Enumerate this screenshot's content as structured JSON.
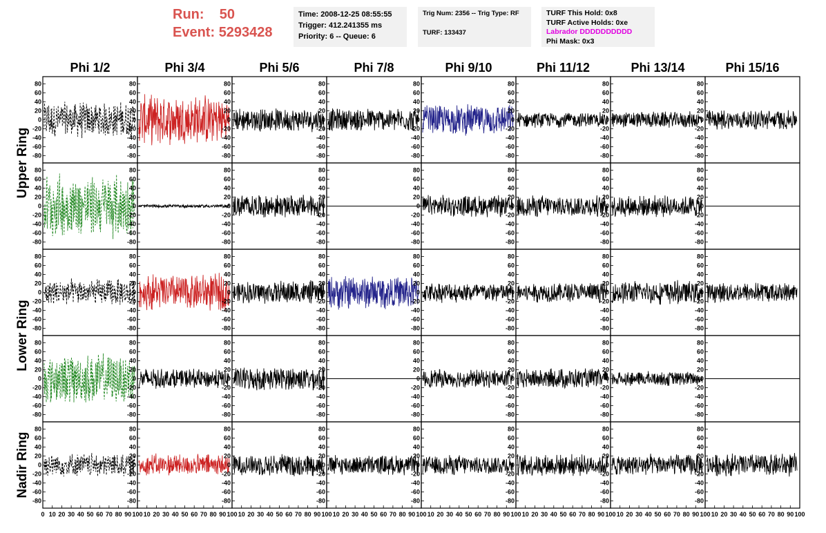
{
  "header": {
    "run_label": "Run:",
    "run_value": "50",
    "event_label": "Event:",
    "event_value": "5293428",
    "time": "Time: 2008-12-25 08:55:55",
    "trigger": "Trigger: 412.241355 ms",
    "priority": "Priority: 6 -- Queue: 6",
    "trig_num": "Trig Num: 2356 -- Trig Type: RF",
    "turf": "TURF: 133437",
    "turf_hold": "TURF This Hold: 0x8",
    "turf_active": "TURF Active Holds: 0xe",
    "labrador": "Labrador DDDDDDDDDD",
    "phi_mask": "Phi Mask: 0x3"
  },
  "colors": {
    "run_text": "#d9534f",
    "labrador": "#e000e0",
    "trace_black": "#000000",
    "trace_red": "#cc2222",
    "trace_green": "#228822",
    "trace_blue": "#22228a"
  },
  "columns": [
    "Phi 1/2",
    "Phi 3/4",
    "Phi 5/6",
    "Phi 7/8",
    "Phi 9/10",
    "Phi 11/12",
    "Phi 13/14",
    "Phi 15/16"
  ],
  "rows": [
    {
      "label": "Upper Ring",
      "panel_rows": 2
    },
    {
      "label": "Lower Ring",
      "panel_rows": 2
    },
    {
      "label": "Nadir Ring",
      "panel_rows": 1
    }
  ],
  "chart_data": {
    "type": "line",
    "grid": false,
    "ylim": [
      -90,
      90
    ],
    "yticks": [
      -80,
      -60,
      -40,
      -20,
      0,
      20,
      40,
      60,
      80
    ],
    "xlim": [
      0,
      100
    ],
    "xticks": [
      0,
      10,
      20,
      30,
      40,
      50,
      60,
      70,
      80,
      90,
      100
    ],
    "xtick_labels_per_panel": [
      "0",
      "10",
      "20",
      "30",
      "40",
      "50",
      "60",
      "70",
      "80",
      "90",
      "100"
    ],
    "samples_per_trace": 260,
    "panels": [
      [
        "black-dashed",
        "red",
        "black",
        "black",
        "blue",
        "black",
        "black",
        "black"
      ],
      [
        "green-dashed",
        "black-small",
        "black",
        "flat",
        "black",
        "black",
        "black",
        "flat"
      ],
      [
        "black-dashed",
        "red",
        "black",
        "blue",
        "black",
        "black",
        "black",
        "black"
      ],
      [
        "green-dashed",
        "black",
        "black",
        "flat",
        "black",
        "black",
        "black",
        "flat"
      ],
      [
        "black-dashed",
        "red",
        "black",
        "black",
        "black",
        "black",
        "black",
        "black"
      ]
    ],
    "amplitudes": [
      [
        22,
        30,
        14,
        14,
        18,
        9,
        10,
        12
      ],
      [
        38,
        2,
        14,
        0,
        13,
        13,
        13,
        0
      ],
      [
        16,
        22,
        14,
        20,
        12,
        12,
        14,
        12
      ],
      [
        30,
        12,
        14,
        0,
        11,
        12,
        9,
        0
      ],
      [
        14,
        13,
        13,
        12,
        12,
        13,
        13,
        14
      ]
    ]
  }
}
